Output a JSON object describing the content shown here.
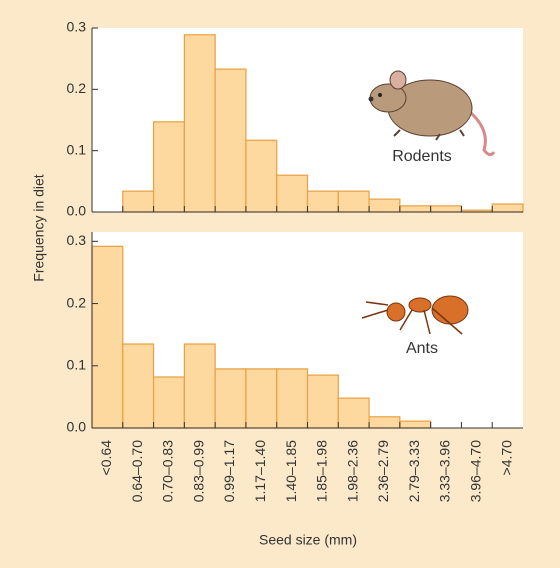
{
  "chart_data": {
    "type": "bar",
    "xlabel": "Seed size (mm)",
    "ylabel": "Frequency in diet",
    "categories": [
      "<0.64",
      "0.64–0.70",
      "0.70–0.83",
      "0.83–0.99",
      "0.99–1.17",
      "1.17–1.40",
      "1.40–1.85",
      "1.85–1.98",
      "1.98–2.36",
      "2.36–2.79",
      "2.79–3.33",
      "3.33–3.96",
      "3.96–4.70",
      ">4.70"
    ],
    "color": "#fdd9a0",
    "edge_color": "#e8a040",
    "series": [
      {
        "name": "Rodents",
        "values": [
          0,
          0.034,
          0.147,
          0.289,
          0.233,
          0.117,
          0.06,
          0.034,
          0.034,
          0.021,
          0.01,
          0.01,
          0.003,
          0.013
        ],
        "ylim": [
          0,
          0.3
        ],
        "yticks": [
          {
            "value": 0,
            "label": "0.0"
          },
          0.1,
          0.2,
          0.3
        ]
      },
      {
        "name": "Ants",
        "values": [
          0.292,
          0.135,
          0.082,
          0.135,
          0.095,
          0.095,
          0.095,
          0.085,
          0.048,
          0.018,
          0.011,
          0,
          0,
          0
        ],
        "ylim": [
          0,
          0.315
        ],
        "yticks": [
          {
            "value": 0,
            "label": "0.0"
          },
          0.1,
          0.2,
          0.3
        ]
      }
    ]
  }
}
